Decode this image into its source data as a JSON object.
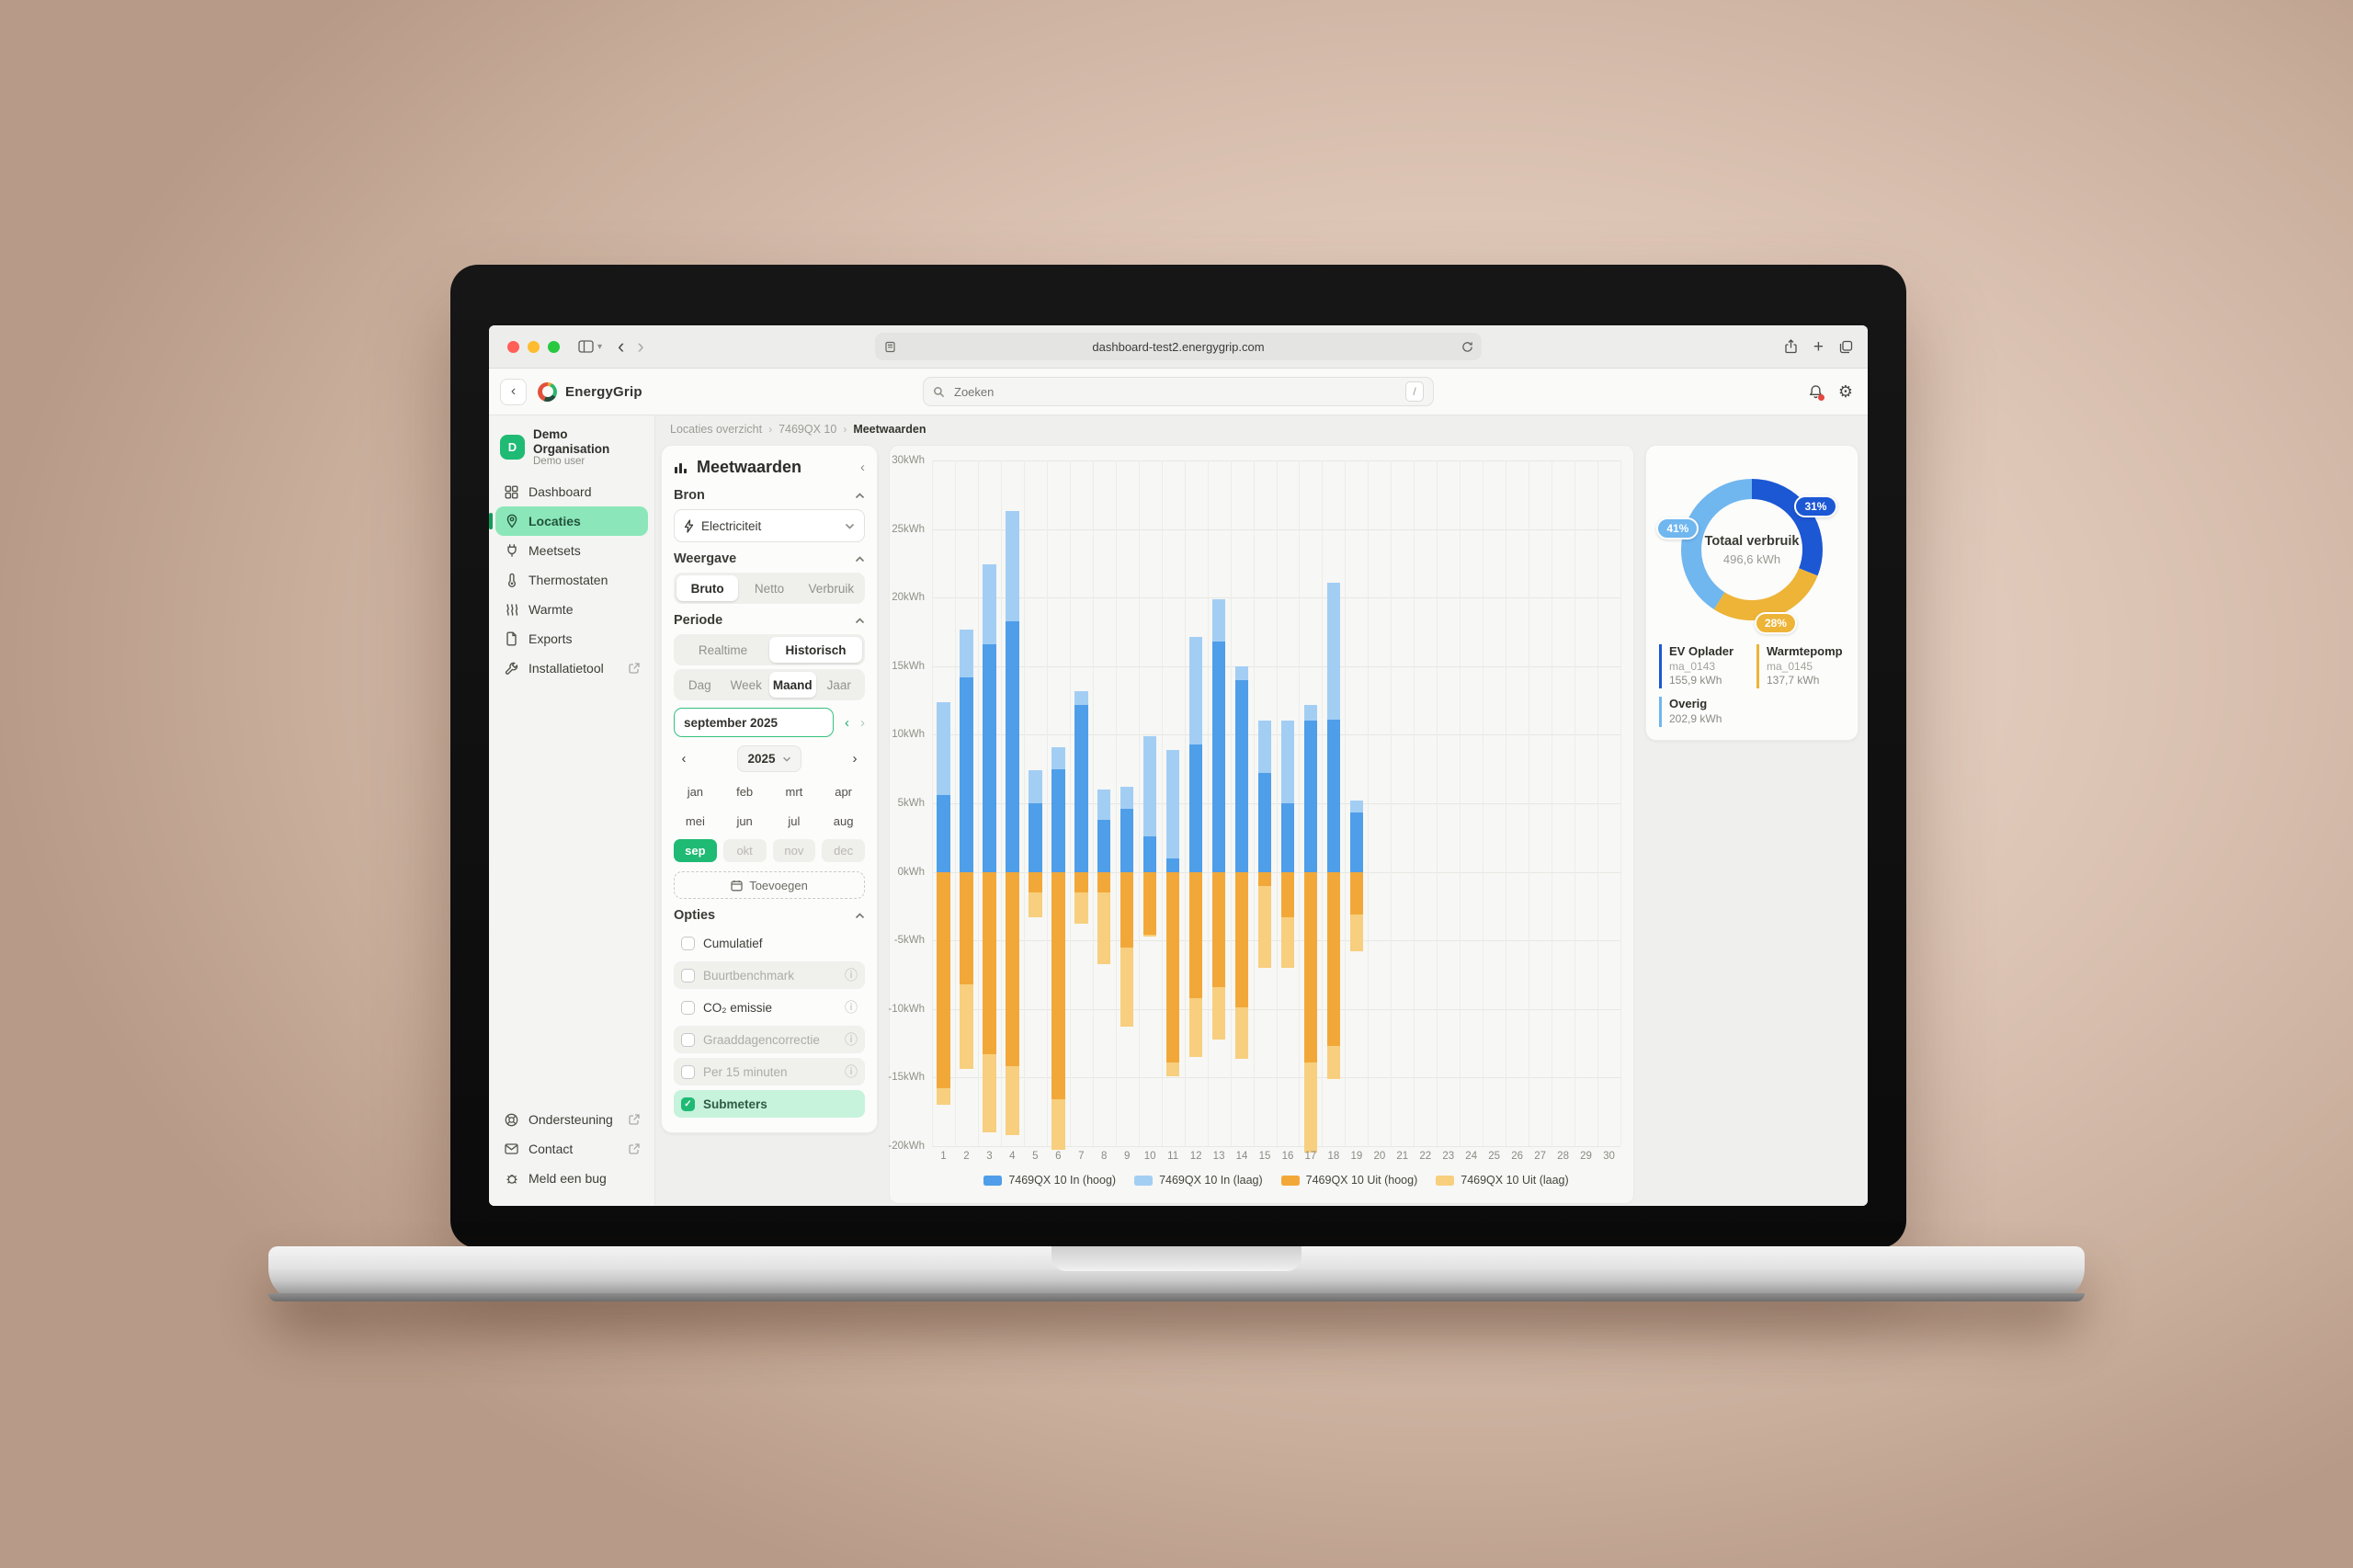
{
  "browser": {
    "url": "dashboard-test2.energygrip.com"
  },
  "app_header": {
    "brand": "EnergyGrip",
    "search_placeholder": "Zoeken",
    "search_shortcut": "/"
  },
  "sidebar": {
    "org": {
      "initial": "D",
      "name": "Demo Organisation",
      "subtitle": "Demo user"
    },
    "items": [
      {
        "id": "dashboard",
        "label": "Dashboard",
        "icon": "grid-icon",
        "selected": false,
        "external": false
      },
      {
        "id": "locaties",
        "label": "Locaties",
        "icon": "map-pin-icon",
        "selected": true,
        "external": false
      },
      {
        "id": "meetsets",
        "label": "Meetsets",
        "icon": "plug-icon",
        "selected": false,
        "external": false
      },
      {
        "id": "thermostaten",
        "label": "Thermostaten",
        "icon": "thermometer-icon",
        "selected": false,
        "external": false
      },
      {
        "id": "warmte",
        "label": "Warmte",
        "icon": "heat-waves-icon",
        "selected": false,
        "external": false
      },
      {
        "id": "exports",
        "label": "Exports",
        "icon": "document-icon",
        "selected": false,
        "external": false
      },
      {
        "id": "installatietool",
        "label": "Installatietool",
        "icon": "wrench-icon",
        "selected": false,
        "external": true
      }
    ],
    "footer_items": [
      {
        "id": "ondersteuning",
        "label": "Ondersteuning",
        "icon": "lifebuoy-icon",
        "external": true
      },
      {
        "id": "contact",
        "label": "Contact",
        "icon": "mail-icon",
        "external": true
      },
      {
        "id": "meld-een-bug",
        "label": "Meld een bug",
        "icon": "bug-icon",
        "external": false
      }
    ]
  },
  "breadcrumb": [
    "Locaties overzicht",
    "7469QX 10",
    "Meetwaarden"
  ],
  "filters": {
    "title": "Meetwaarden",
    "bron_label": "Bron",
    "bron_value": "Electriciteit",
    "weergave_label": "Weergave",
    "weergave_options": [
      "Bruto",
      "Netto",
      "Verbruik"
    ],
    "weergave_selected": "Bruto",
    "periode_label": "Periode",
    "mode_options": [
      "Realtime",
      "Historisch"
    ],
    "mode_selected": "Historisch",
    "granularity_options": [
      "Dag",
      "Week",
      "Maand",
      "Jaar"
    ],
    "granularity_selected": "Maand",
    "date_value": "september 2025",
    "year_value": "2025",
    "months": [
      "jan",
      "feb",
      "mrt",
      "apr",
      "mei",
      "jun",
      "jul",
      "aug",
      "sep",
      "okt",
      "nov",
      "dec"
    ],
    "month_selected": "sep",
    "months_disabled": [
      "okt",
      "nov",
      "dec"
    ],
    "add_button": "Toevoegen",
    "opties_label": "Opties",
    "options": [
      {
        "label": "Cumulatief",
        "checked": false,
        "disabled": false,
        "info": false
      },
      {
        "label": "Buurtbenchmark",
        "checked": false,
        "disabled": true,
        "info": true
      },
      {
        "label": "CO₂ emissie",
        "checked": false,
        "disabled": false,
        "info": true
      },
      {
        "label": "Graaddagencorrectie",
        "checked": false,
        "disabled": true,
        "info": true
      },
      {
        "label": "Per 15 minuten",
        "checked": false,
        "disabled": true,
        "info": true
      },
      {
        "label": "Submeters",
        "checked": true,
        "disabled": false,
        "info": false
      }
    ]
  },
  "chart_data": {
    "type": "bar",
    "stacked": true,
    "x": [
      1,
      2,
      3,
      4,
      5,
      6,
      7,
      8,
      9,
      10,
      11,
      12,
      13,
      14,
      15,
      16,
      17,
      18,
      19,
      20,
      21,
      22,
      23,
      24,
      25,
      26,
      27,
      28,
      29,
      30
    ],
    "yunit": "kWh",
    "ylim": [
      -20,
      30
    ],
    "ytick_step": 5,
    "grid": true,
    "legend_position": "bottom",
    "series": [
      {
        "name": "7469QX 10 In (hoog)",
        "color": "#4E9EE9",
        "values": [
          5.6,
          14.2,
          16.6,
          18.3,
          5.0,
          7.5,
          12.2,
          3.8,
          4.6,
          2.6,
          1.0,
          9.3,
          16.8,
          14.0,
          7.2,
          5.0,
          11.0,
          11.1,
          4.3,
          0,
          0,
          0,
          0,
          0,
          0,
          0,
          0,
          0,
          0,
          0
        ]
      },
      {
        "name": "7469QX 10 In (laag)",
        "color": "#A3CEF4",
        "values": [
          6.8,
          3.5,
          5.8,
          8.0,
          2.4,
          1.6,
          1.0,
          2.2,
          1.6,
          7.3,
          7.9,
          7.8,
          3.1,
          1.0,
          3.8,
          6.0,
          1.2,
          10.0,
          0.9,
          0,
          0,
          0,
          0,
          0,
          0,
          0,
          0,
          0,
          0,
          0
        ]
      },
      {
        "name": "7469QX 10 Uit (hoog)",
        "color": "#F2A838",
        "values": [
          -15.8,
          -8.2,
          -13.3,
          -14.2,
          -1.5,
          -16.6,
          -1.5,
          -1.5,
          -5.5,
          -4.6,
          -13.9,
          -9.2,
          -8.4,
          -9.9,
          -1.0,
          -3.3,
          -13.9,
          -12.7,
          -3.1,
          0,
          0,
          0,
          0,
          0,
          0,
          0,
          0,
          0,
          0,
          0
        ]
      },
      {
        "name": "7469QX 10 Uit (laag)",
        "color": "#F7CF7E",
        "values": [
          -1.2,
          -6.2,
          -5.7,
          -5.0,
          -1.8,
          -3.7,
          -2.3,
          -5.2,
          -5.8,
          -0.1,
          -1.0,
          -4.3,
          -3.8,
          -3.7,
          -6.0,
          -3.7,
          -6.6,
          -2.4,
          -2.7,
          0,
          0,
          0,
          0,
          0,
          0,
          0,
          0,
          0,
          0,
          0
        ]
      }
    ]
  },
  "usage_panel": {
    "center_title": "Totaal verbruik",
    "center_value": "496,6 kWh",
    "segments": [
      {
        "label": "EV Oplader",
        "meter": "ma_0143",
        "value": "155,9 kWh",
        "pct": 31,
        "color": "#1C57D4"
      },
      {
        "label": "Warmtepomp",
        "meter": "ma_0145",
        "value": "137,7 kWh",
        "pct": 28,
        "color": "#EDB437"
      },
      {
        "label": "Overig",
        "meter": "",
        "value": "202,9 kWh",
        "pct": 41,
        "color": "#70B6EF"
      }
    ]
  }
}
